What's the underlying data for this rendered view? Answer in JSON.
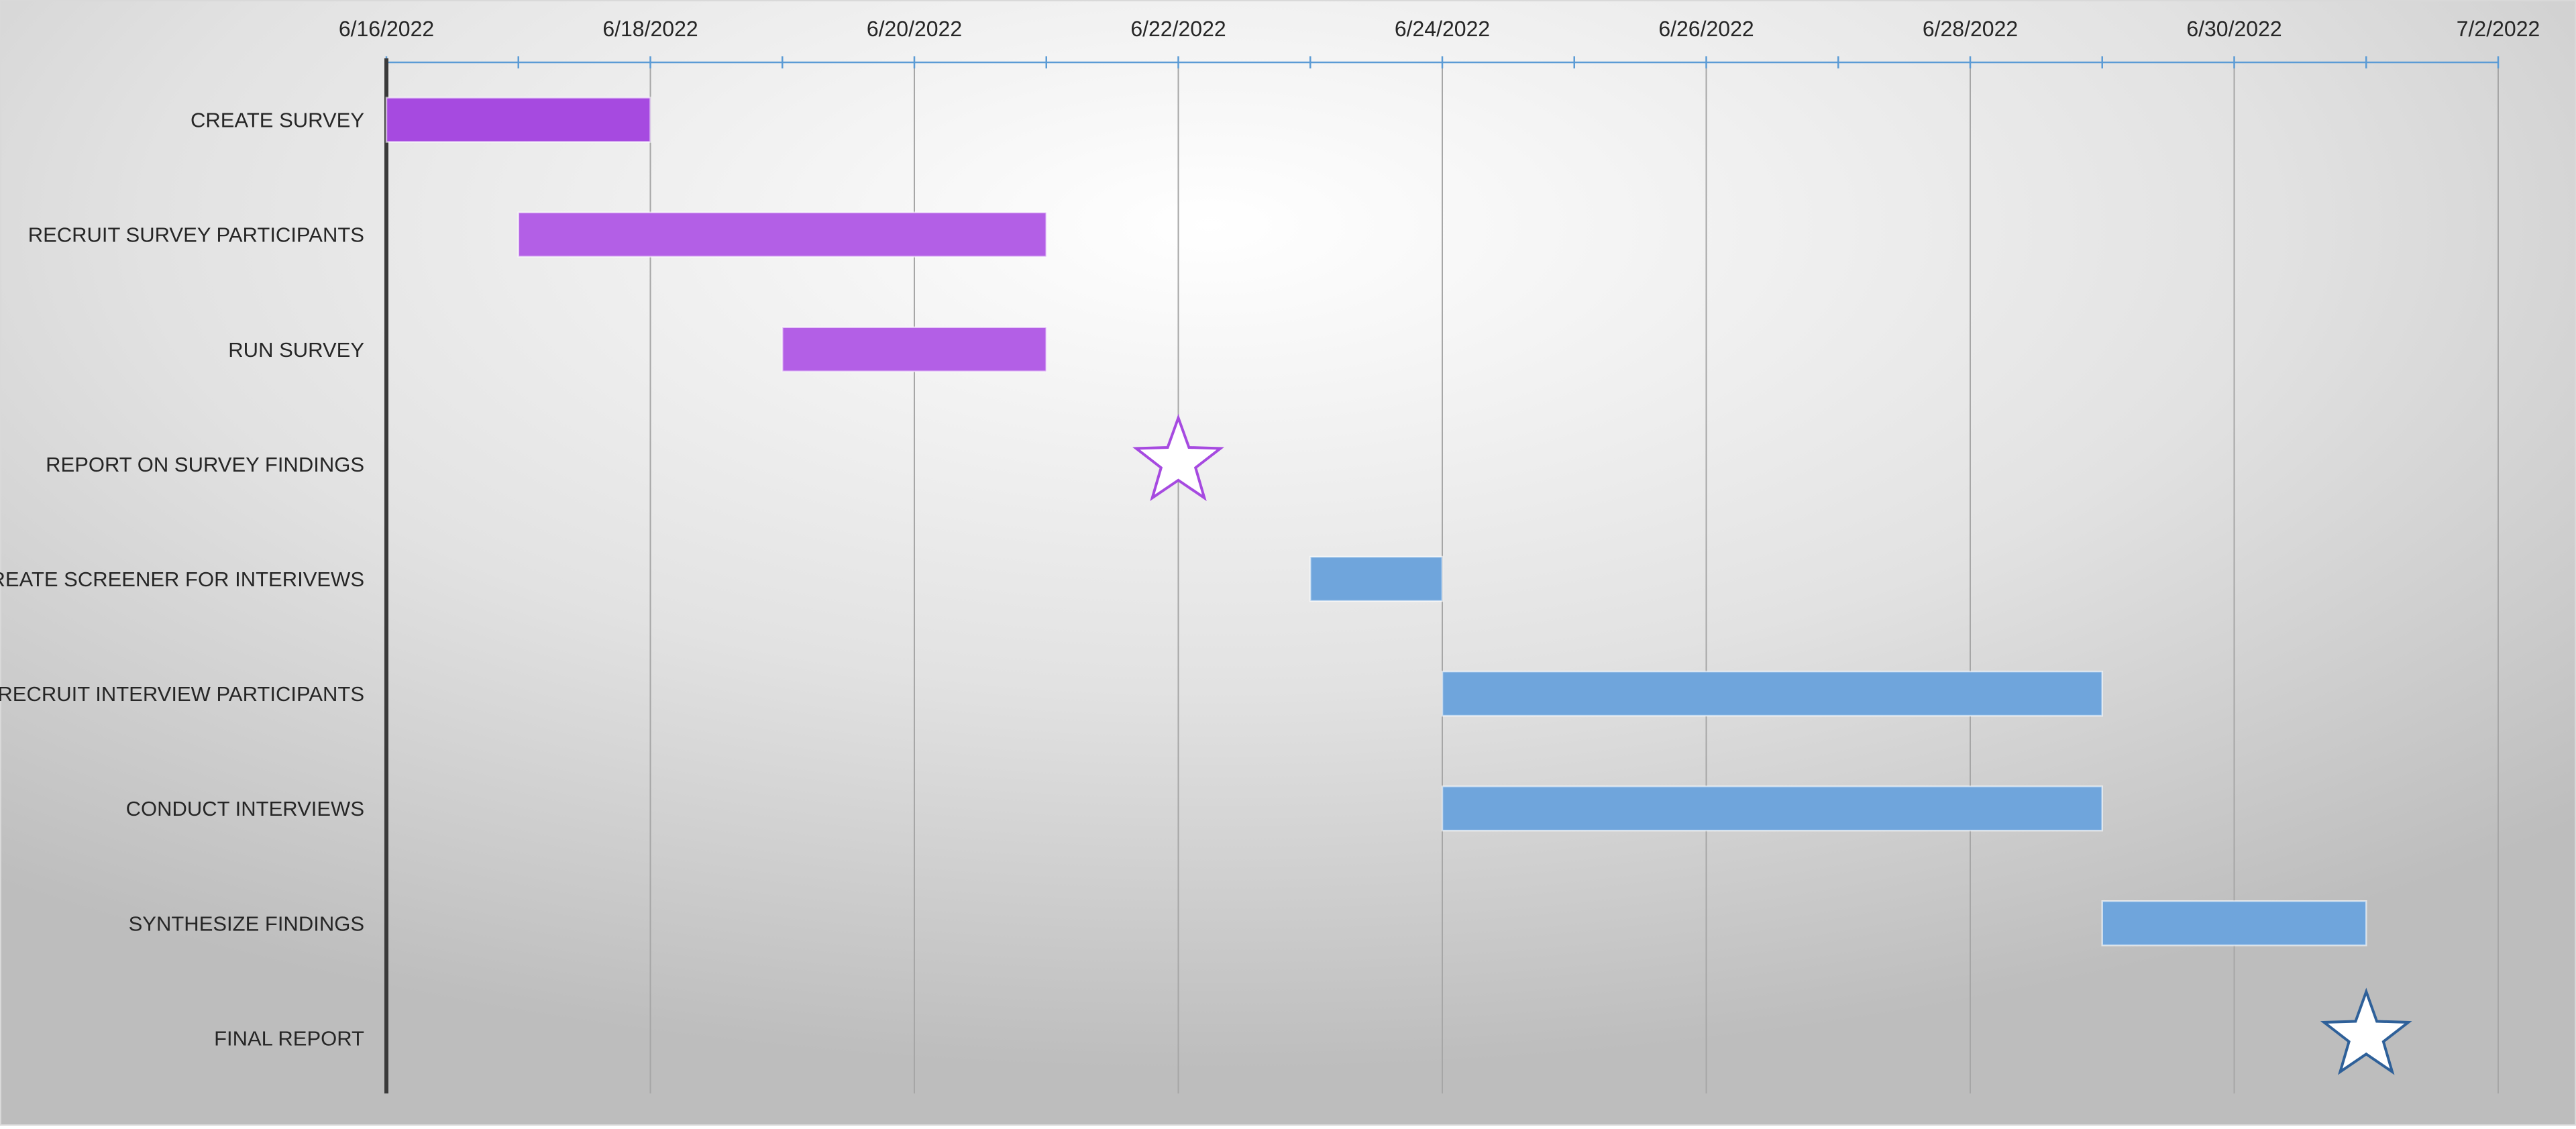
{
  "chart_data": {
    "type": "gantt",
    "title": "",
    "x_axis": {
      "type": "date",
      "position": "top",
      "range": [
        "6/16/2022",
        "7/2/2022"
      ],
      "tick_labels": [
        "6/16/2022",
        "6/18/2022",
        "6/20/2022",
        "6/22/2022",
        "6/24/2022",
        "6/26/2022",
        "6/28/2022",
        "6/30/2022",
        "7/2/2022"
      ],
      "minor_tick_interval_days": 1,
      "major_tick_interval_days": 2,
      "gridlines": true
    },
    "tasks": [
      {
        "label": "CREATE SURVEY",
        "start": "6/16/2022",
        "end": "6/18/2022",
        "kind": "bar",
        "color": "#A64AE0"
      },
      {
        "label": "RECRUIT SURVEY PARTICIPANTS",
        "start": "6/17/2022",
        "end": "6/21/2022",
        "kind": "bar",
        "color": "#B35FE6"
      },
      {
        "label": "RUN SURVEY",
        "start": "6/19/2022",
        "end": "6/21/2022",
        "kind": "bar",
        "color": "#B35FE6"
      },
      {
        "label": "REPORT ON SURVEY FINDINGS",
        "date": "6/22/2022",
        "kind": "milestone",
        "color": "#A64AE0"
      },
      {
        "label": "CREATE SCREENER FOR INTERIVEWS",
        "start": "6/23/2022",
        "end": "6/24/2022",
        "kind": "bar",
        "color": "#6FA5DC"
      },
      {
        "label": "RECRUIT INTERVIEW PARTICIPANTS",
        "start": "6/24/2022",
        "end": "6/29/2022",
        "kind": "bar",
        "color": "#6FA5DC"
      },
      {
        "label": "CONDUCT INTERVIEWS",
        "start": "6/24/2022",
        "end": "6/29/2022",
        "kind": "bar",
        "color": "#6FA5DC"
      },
      {
        "label": "SYNTHESIZE FINDINGS",
        "start": "6/29/2022",
        "end": "7/1/2022",
        "kind": "bar",
        "color": "#6FA5DC"
      },
      {
        "label": "FINAL REPORT",
        "date": "7/1/2022",
        "kind": "milestone",
        "color": "#2E6099"
      }
    ],
    "colors": {
      "axis_line": "#5B9BD5",
      "left_axis": "#3A3A3A",
      "gridline": "#A6A6A6",
      "background_center": "#FFFFFF",
      "background_edge": "#BFBFBF"
    }
  }
}
